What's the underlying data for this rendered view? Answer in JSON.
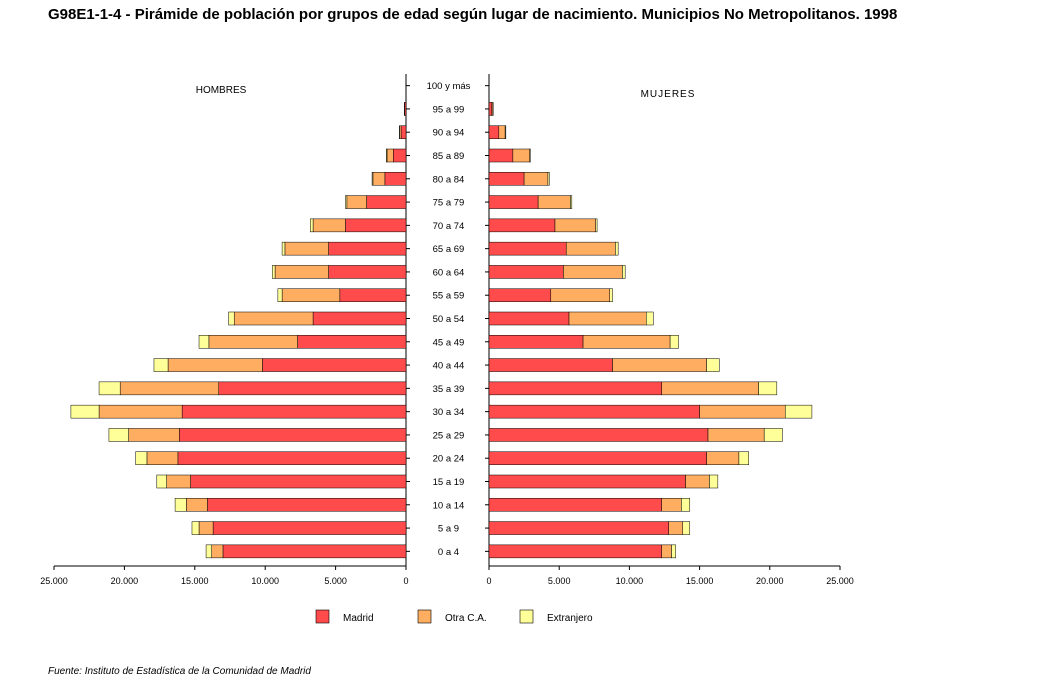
{
  "title": "G98E1-1-4 - Pirámide de población por grupos de edad según lugar de nacimiento. Municipios No Metropolitanos.  1998",
  "source": "Fuente: Instituto de Estadística de la Comunidad de Madrid",
  "chart_data": {
    "type": "bar",
    "orientation": "horizontal",
    "subtype": "population-pyramid",
    "left_panel_label": "HOMBRES",
    "right_panel_label": "MUJERES",
    "categories": [
      "0 a 4",
      "5 a 9",
      "10 a 14",
      "15 a 19",
      "20 a 24",
      "25 a 29",
      "30 a 34",
      "35 a 39",
      "40 a  44",
      "45 a 49",
      "50 a 54",
      "55 a 59",
      "60 a 64",
      "65 a 69",
      "70 a 74",
      "75 a 79",
      "80 a 84",
      "85 a 89",
      "90 a 94",
      "95 a 99",
      "100 y más"
    ],
    "xlim": [
      0,
      25000
    ],
    "x_ticks": [
      "25.000",
      "20.000",
      "15.000",
      "10.000",
      "5.000",
      "0"
    ],
    "x_ticks_right": [
      "0",
      "5.000",
      "10.000",
      "15.000",
      "20.000",
      "25.000"
    ],
    "series_colors": {
      "Madrid": "#ff4b4b",
      "Otra C.A.": "#ffad60",
      "Extranjero": "#ffff99"
    },
    "hombres": {
      "Madrid": [
        13000,
        13700,
        14100,
        15300,
        16200,
        16100,
        15900,
        13300,
        10200,
        7700,
        6600,
        4700,
        5500,
        5500,
        4300,
        2800,
        1500,
        900,
        350,
        100,
        0
      ],
      "Otra C.A.": [
        800,
        1000,
        1500,
        1700,
        2200,
        3600,
        5900,
        7000,
        6700,
        6300,
        5600,
        4100,
        3800,
        3100,
        2300,
        1400,
        850,
        450,
        100,
        20,
        0
      ],
      "Extranjero": [
        400,
        500,
        800,
        700,
        800,
        1400,
        2000,
        1500,
        1000,
        700,
        400,
        300,
        200,
        200,
        200,
        100,
        60,
        50,
        20,
        0,
        0
      ]
    },
    "mujeres": {
      "Madrid": [
        12300,
        12800,
        12300,
        14000,
        15500,
        15600,
        15000,
        12300,
        8800,
        6700,
        5700,
        4400,
        5300,
        5500,
        4700,
        3500,
        2500,
        1700,
        700,
        200,
        0
      ],
      "Otra C.A.": [
        700,
        1000,
        1400,
        1700,
        2300,
        4000,
        6100,
        6900,
        6700,
        6200,
        5500,
        4200,
        4200,
        3500,
        2900,
        2300,
        1700,
        1200,
        450,
        80,
        0
      ],
      "Extranjero": [
        300,
        500,
        600,
        600,
        700,
        1300,
        1900,
        1300,
        900,
        600,
        500,
        200,
        200,
        200,
        100,
        100,
        100,
        50,
        50,
        20,
        0
      ]
    }
  },
  "legend": [
    {
      "label": "Madrid",
      "color": "#ff4b4b"
    },
    {
      "label": "Otra C.A.",
      "color": "#ffad60"
    },
    {
      "label": "Extranjero",
      "color": "#ffff99"
    }
  ]
}
